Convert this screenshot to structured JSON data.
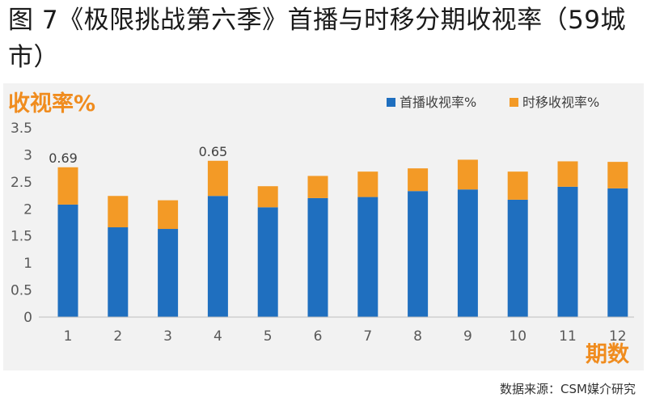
{
  "figure": {
    "title": "图 7《极限挑战第六季》首播与时移分期收视率（59城市）",
    "source": "数据来源：CSM媒介研究"
  },
  "colors": {
    "premiere": "#1f6fbf",
    "timeshift": "#f39a26",
    "axis_label": "#f08c1e",
    "panel": "#f2f2f2"
  },
  "chart_data": {
    "type": "bar",
    "stacked": true,
    "ylabel": "收视率%",
    "xlabel": "期数",
    "categories": [
      "1",
      "2",
      "3",
      "4",
      "5",
      "6",
      "7",
      "8",
      "9",
      "10",
      "11",
      "12"
    ],
    "ylim": [
      0,
      3.5
    ],
    "yticks": [
      "0",
      "0.5",
      "1",
      "1.5",
      "2",
      "2.5",
      "3",
      "3.5"
    ],
    "legend_position": "top-right",
    "grid": false,
    "series": [
      {
        "name": "首播收视率%",
        "values": [
          2.08,
          1.66,
          1.63,
          2.24,
          2.03,
          2.2,
          2.22,
          2.33,
          2.36,
          2.17,
          2.41,
          2.38
        ]
      },
      {
        "name": "时移收视率%",
        "values": [
          0.69,
          0.58,
          0.53,
          0.65,
          0.39,
          0.41,
          0.47,
          0.42,
          0.55,
          0.52,
          0.47,
          0.49
        ]
      }
    ],
    "data_labels": [
      {
        "index": 0,
        "text": "0.69"
      },
      {
        "index": 3,
        "text": "0.65"
      }
    ]
  }
}
